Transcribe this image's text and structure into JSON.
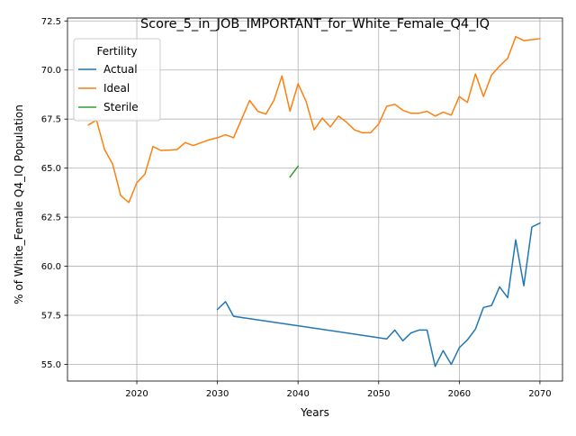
{
  "chart_data": {
    "type": "line",
    "title": "Score_5_in_JOB_IMPORTANT_for_White_Female_Q4_IQ",
    "xlabel": "Years",
    "ylabel": "% of White_Female Q4_IQ Population",
    "xlim": [
      2011.4,
      2072.8
    ],
    "ylim": [
      54.15,
      72.65
    ],
    "x_ticks": [
      2020,
      2030,
      2040,
      2050,
      2060,
      2070
    ],
    "x_tick_labels": [
      "2020",
      "2030",
      "2040",
      "2050",
      "2060",
      "2070"
    ],
    "y_ticks": [
      55.0,
      57.5,
      60.0,
      62.5,
      65.0,
      67.5,
      70.0,
      72.5
    ],
    "y_tick_labels": [
      "55.0",
      "57.5",
      "60.0",
      "62.5",
      "65.0",
      "67.5",
      "70.0",
      "72.5"
    ],
    "grid": true,
    "legend": {
      "title": "Fertility",
      "placement": "top-left"
    },
    "series": [
      {
        "name": "Actual",
        "color": "#1f77b4",
        "x": [
          2030,
          2031,
          2032,
          2051,
          2052,
          2053,
          2054,
          2055,
          2056,
          2057,
          2058,
          2059,
          2060,
          2061,
          2062,
          2063,
          2064,
          2065,
          2066,
          2067,
          2068,
          2069,
          2070
        ],
        "values": [
          57.8,
          58.2,
          57.45,
          56.3,
          56.75,
          56.2,
          56.6,
          56.75,
          56.75,
          54.9,
          55.7,
          55.0,
          55.85,
          56.25,
          56.8,
          57.9,
          58.0,
          58.95,
          58.4,
          61.35,
          59.0,
          62.0,
          62.2
        ]
      },
      {
        "name": "Ideal",
        "color": "#ff7f0e",
        "x": [
          2014,
          2015,
          2016,
          2017,
          2018,
          2019,
          2020,
          2021,
          2022,
          2023,
          2024,
          2025,
          2026,
          2027,
          2028,
          2029,
          2030,
          2031,
          2032,
          2033,
          2034,
          2035,
          2036,
          2037,
          2038,
          2039,
          2040,
          2041,
          2042,
          2043,
          2044,
          2045,
          2046,
          2047,
          2048,
          2049,
          2050,
          2051,
          2052,
          2053,
          2054,
          2055,
          2056,
          2057,
          2058,
          2059,
          2060,
          2061,
          2062,
          2063,
          2064,
          2065,
          2066,
          2067,
          2068,
          2069,
          2070
        ],
        "values": [
          67.2,
          67.45,
          65.95,
          65.2,
          63.6,
          63.25,
          64.25,
          64.7,
          66.1,
          65.9,
          65.92,
          65.95,
          66.3,
          66.15,
          66.3,
          66.45,
          66.55,
          66.7,
          66.55,
          67.5,
          68.45,
          67.9,
          67.75,
          68.45,
          69.7,
          67.9,
          69.3,
          68.4,
          66.95,
          67.55,
          67.1,
          67.65,
          67.35,
          66.95,
          66.8,
          66.8,
          67.25,
          68.15,
          68.25,
          67.95,
          67.8,
          67.8,
          67.9,
          67.65,
          67.85,
          67.7,
          68.65,
          68.35,
          69.8,
          68.65,
          69.75,
          70.2,
          70.6,
          71.7,
          71.5,
          71.55,
          71.6
        ]
      },
      {
        "name": "Sterile",
        "color": "#2ca02c",
        "x": [
          2039,
          2040
        ],
        "values": [
          64.55,
          65.1
        ]
      }
    ]
  }
}
